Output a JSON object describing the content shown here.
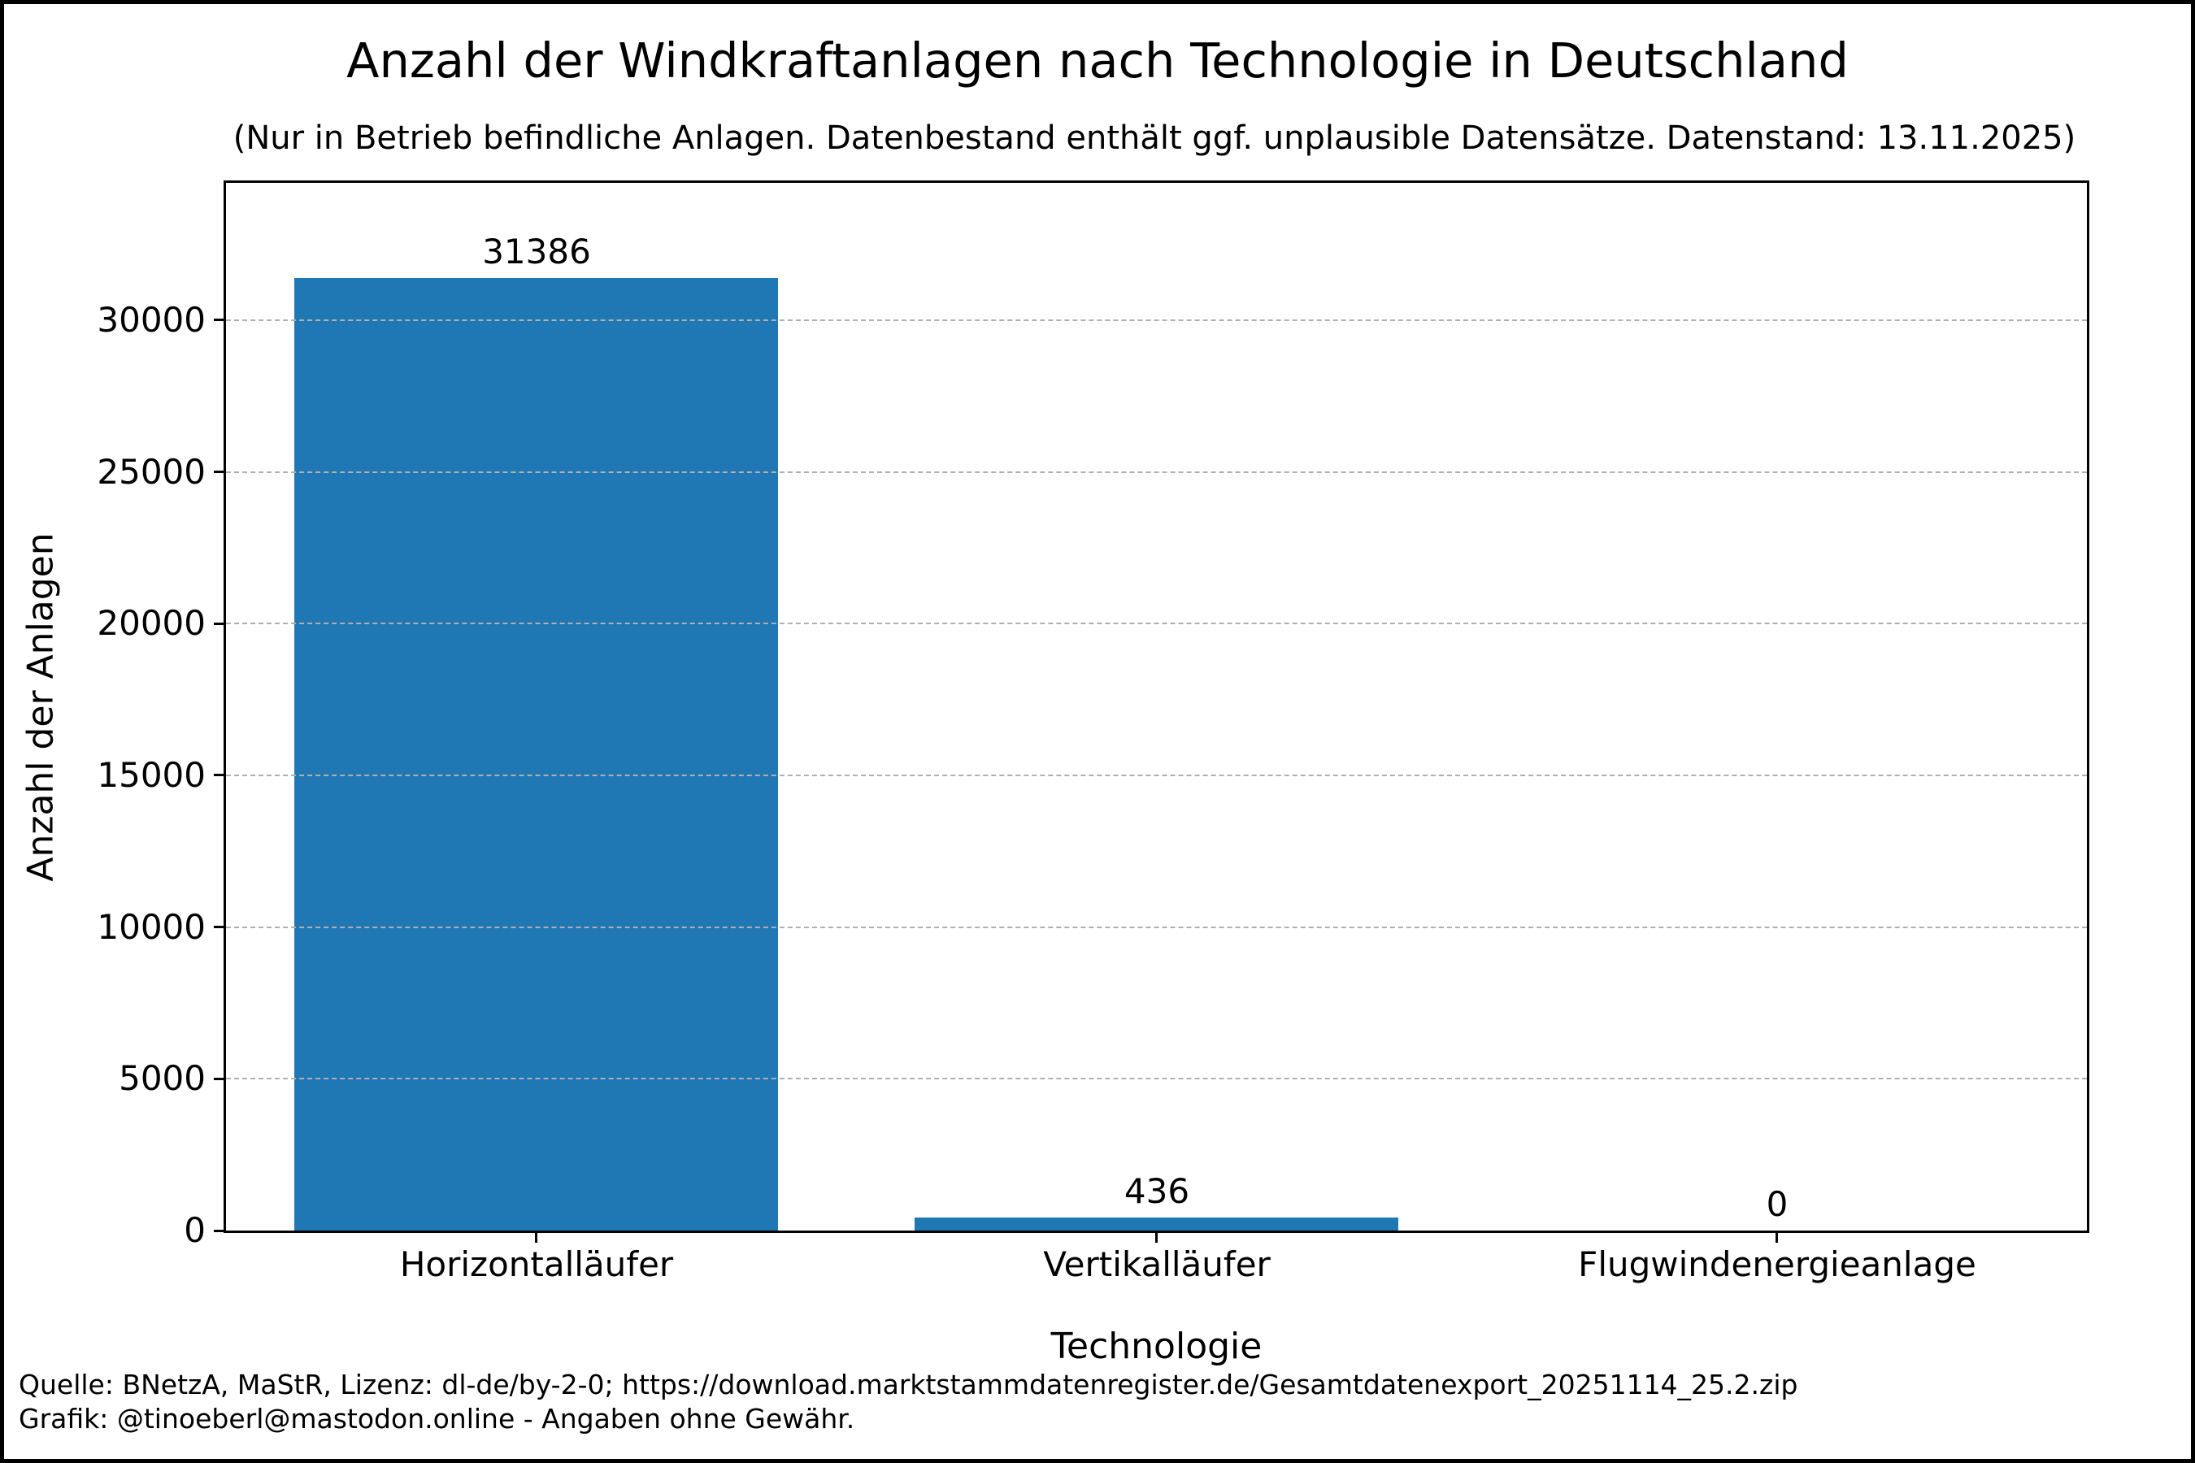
{
  "chart_data": {
    "type": "bar",
    "title": "Anzahl der Windkraftanlagen nach Technologie in Deutschland",
    "subtitle": "(Nur in Betrieb befindliche Anlagen. Datenbestand enthält ggf. unplausible Datensätze. Datenstand: 13.11.2025)",
    "xlabel": "Technologie",
    "ylabel": "Anzahl der Anlagen",
    "categories": [
      "Horizontalläufer",
      "Vertikalläufer",
      "Flugwindenergieanlage"
    ],
    "values": [
      31386,
      436,
      0
    ],
    "bar_value_labels": [
      "31386",
      "436",
      "0"
    ],
    "ylim": [
      0,
      34525
    ],
    "yticks": [
      0,
      5000,
      10000,
      15000,
      20000,
      25000,
      30000
    ],
    "grid": {
      "axis": "y",
      "style": "dashed",
      "color": "#b0b0b0"
    },
    "legend": null,
    "bar_color": "#1f77b4",
    "axis_color": "#000000",
    "background_color": "#ffffff"
  },
  "footer": {
    "line1": "Quelle: BNetzA, MaStR, Lizenz: dl-de/by-2-0; https://download.marktstammdatenregister.de/Gesamtdatenexport_20251114_25.2.zip",
    "line2": "Grafik: @tinoeberl@mastodon.online - Angaben ohne Gewähr."
  }
}
